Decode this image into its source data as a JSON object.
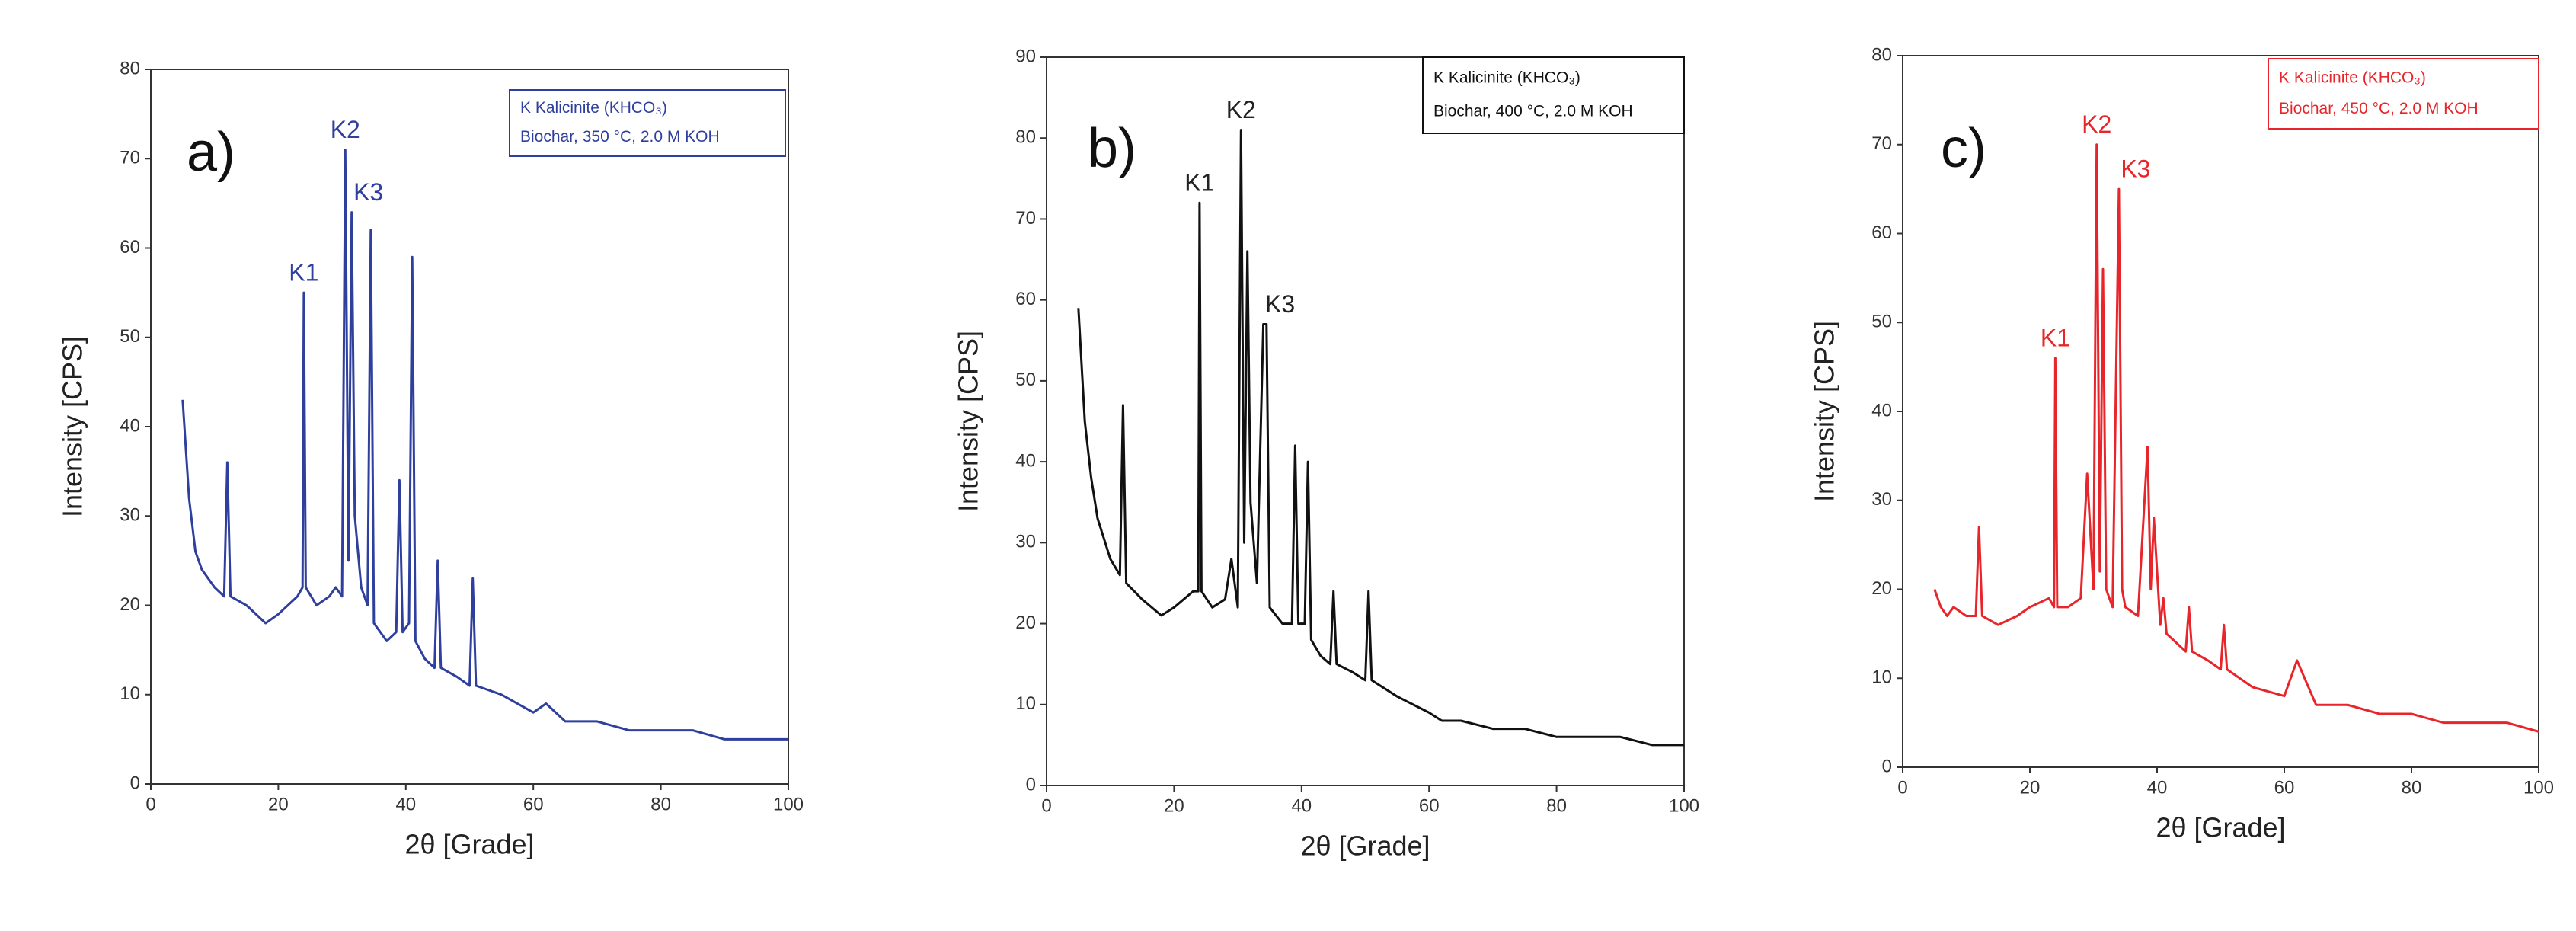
{
  "chart_data": [
    {
      "type": "line",
      "panel_label": "a)",
      "x_label": "2θ [Grade]",
      "y_label": "Intensity [CPS]",
      "legend_title": "K Kalicinite (KHCO₃)",
      "annotations": [
        "K1",
        "K2",
        "K3"
      ],
      "x": [
        5,
        6,
        7,
        8,
        10,
        11.5,
        12,
        12.5,
        15,
        18,
        20,
        23,
        23.8,
        24,
        24.3,
        26,
        28,
        29,
        30,
        30.5,
        31,
        31.5,
        32,
        33,
        34,
        34.5,
        35,
        37,
        38.5,
        39,
        39.5,
        40.5,
        41,
        41.5,
        43,
        44.5,
        45,
        45.5,
        48,
        50,
        50.5,
        51,
        55,
        60,
        62,
        65,
        70,
        75,
        80,
        85,
        90,
        95,
        100
      ],
      "series": [
        {
          "name": "Biochar, 350 °C, 2.0 M KOH",
          "color": "#2e3f9e",
          "values": [
            43,
            32,
            26,
            24,
            22,
            21,
            36,
            21,
            20,
            18,
            19,
            21,
            22,
            55,
            22,
            20,
            21,
            22,
            21,
            71,
            25,
            64,
            30,
            22,
            20,
            62,
            18,
            16,
            17,
            34,
            17,
            18,
            59,
            16,
            14,
            13,
            25,
            13,
            12,
            11,
            23,
            11,
            10,
            8,
            9,
            7,
            7,
            6,
            6,
            6,
            5,
            5,
            5
          ]
        }
      ],
      "xlim": [
        0,
        100
      ],
      "xticks": [
        0,
        20,
        40,
        60,
        80,
        100
      ],
      "ylim": [
        0,
        80
      ],
      "yticks": [
        0,
        10,
        20,
        30,
        40,
        50,
        60,
        70,
        80
      ]
    },
    {
      "type": "line",
      "panel_label": "b)",
      "x_label": "2θ [Grade]",
      "y_label": "Intensity [CPS]",
      "legend_title": "K Kalicinite (KHCO₃)",
      "annotations": [
        "K1",
        "K2",
        "K3"
      ],
      "x": [
        5,
        6,
        7,
        8,
        10,
        11.5,
        12,
        12.5,
        15,
        18,
        20,
        23,
        23.8,
        24,
        24.3,
        26,
        28,
        29,
        30,
        30.5,
        31,
        31.5,
        32,
        33,
        34,
        34.5,
        35,
        37,
        38.5,
        39,
        39.5,
        40.5,
        41,
        41.5,
        43,
        44.5,
        45,
        45.5,
        48,
        50,
        50.5,
        51,
        55,
        60,
        62,
        65,
        70,
        75,
        80,
        85,
        90,
        95,
        100
      ],
      "series": [
        {
          "name": "Biochar, 400 °C, 2.0 M KOH",
          "color": "#111111",
          "values": [
            59,
            45,
            38,
            33,
            28,
            26,
            47,
            25,
            23,
            21,
            22,
            24,
            24,
            72,
            24,
            22,
            23,
            28,
            22,
            81,
            30,
            66,
            35,
            25,
            57,
            57,
            22,
            20,
            20,
            42,
            20,
            20,
            40,
            18,
            16,
            15,
            24,
            15,
            14,
            13,
            24,
            13,
            11,
            9,
            8,
            8,
            7,
            7,
            6,
            6,
            6,
            5,
            5
          ]
        }
      ],
      "xlim": [
        0,
        100
      ],
      "xticks": [
        0,
        20,
        40,
        60,
        80,
        100
      ],
      "ylim": [
        0,
        90
      ],
      "yticks": [
        0,
        10,
        20,
        30,
        40,
        50,
        60,
        70,
        80,
        90
      ]
    },
    {
      "type": "line",
      "panel_label": "c)",
      "x_label": "2θ [Grade]",
      "y_label": "Intensity [CPS]",
      "legend_title": "K Kalicinite (KHCO₃)",
      "annotations": [
        "K1",
        "K2",
        "K3"
      ],
      "x": [
        5,
        6,
        7,
        8,
        10,
        11.5,
        12,
        12.5,
        15,
        18,
        20,
        23,
        23.8,
        24,
        24.3,
        26,
        28,
        29,
        30,
        30.5,
        31,
        31.5,
        32,
        33,
        34,
        34.5,
        35,
        37,
        38.5,
        39,
        39.5,
        40.5,
        41,
        41.5,
        43,
        44.5,
        45,
        45.5,
        48,
        50,
        50.5,
        51,
        55,
        60,
        62,
        65,
        70,
        75,
        80,
        85,
        90,
        95,
        100
      ],
      "series": [
        {
          "name": "Biochar, 450 °C, 2.0 M KOH",
          "color": "#e8252a",
          "values": [
            20,
            18,
            17,
            18,
            17,
            17,
            27,
            17,
            16,
            17,
            18,
            19,
            18,
            46,
            18,
            18,
            19,
            33,
            20,
            70,
            22,
            56,
            20,
            18,
            65,
            20,
            18,
            17,
            36,
            20,
            28,
            16,
            19,
            15,
            14,
            13,
            18,
            13,
            12,
            11,
            16,
            11,
            9,
            8,
            12,
            7,
            7,
            6,
            6,
            5,
            5,
            5,
            4
          ]
        }
      ],
      "xlim": [
        0,
        100
      ],
      "xticks": [
        0,
        20,
        40,
        60,
        80,
        100
      ],
      "ylim": [
        0,
        80
      ],
      "yticks": [
        0,
        10,
        20,
        30,
        40,
        50,
        60,
        70,
        80
      ]
    }
  ]
}
